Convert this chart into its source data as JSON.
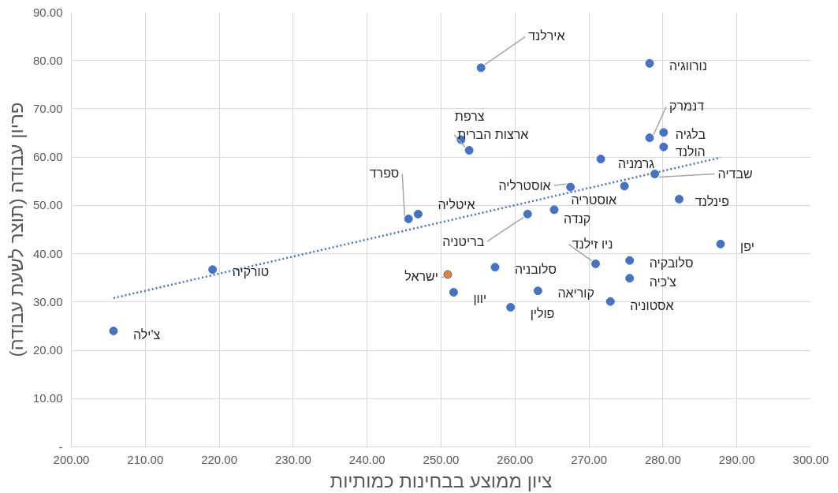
{
  "chart_data": {
    "type": "scatter",
    "xlabel": "ציון ממוצע בבחינות כמותיות",
    "ylabel": "פריון עבודה (תוצר לשעת עבודה)",
    "marker": "circle",
    "grid": true,
    "xlim": [
      200,
      300
    ],
    "ylim": [
      0,
      90
    ],
    "xticks": [
      {
        "value": 200,
        "label": "200.00"
      },
      {
        "value": 210,
        "label": "210.00"
      },
      {
        "value": 220,
        "label": "220.00"
      },
      {
        "value": 230,
        "label": "230.00"
      },
      {
        "value": 240,
        "label": "240.00"
      },
      {
        "value": 250,
        "label": "250.00"
      },
      {
        "value": 260,
        "label": "260.00"
      },
      {
        "value": 270,
        "label": "270.00"
      },
      {
        "value": 280,
        "label": "280.00"
      },
      {
        "value": 290,
        "label": "290.00"
      },
      {
        "value": 300,
        "label": "300.00"
      }
    ],
    "yticks": [
      {
        "value": 0,
        "label": "-"
      },
      {
        "value": 10,
        "label": "10.00"
      },
      {
        "value": 20,
        "label": "20.00"
      },
      {
        "value": 30,
        "label": "30.00"
      },
      {
        "value": 40,
        "label": "40.00"
      },
      {
        "value": 50,
        "label": "50.00"
      },
      {
        "value": 60,
        "label": "60.00"
      },
      {
        "value": 70,
        "label": "70.00"
      },
      {
        "value": 80,
        "label": "80.00"
      },
      {
        "value": 90,
        "label": "90.00"
      }
    ],
    "series": [
      {
        "x": [
          205.7,
          219.1,
          250.9,
          251.7,
          257.3,
          259.4,
          263.1,
          245.6,
          246.9,
          261.7,
          265.3,
          267.5,
          271.6,
          255.4,
          253.8,
          252.7,
          278.2,
          278.2,
          280.1,
          280.1,
          278.9,
          282.2,
          287.8,
          270.9,
          275.5,
          275.5,
          272.9,
          274.8
        ],
        "values": [
          24.0,
          36.7,
          35.7,
          32.0,
          37.2,
          28.9,
          32.3,
          47.2,
          48.2,
          48.2,
          49.1,
          53.8,
          59.6,
          78.5,
          61.4,
          63.6,
          79.4,
          64.0,
          65.1,
          62.1,
          56.5,
          51.3,
          42.0,
          37.9,
          38.6,
          34.9,
          30.1,
          54.0
        ],
        "colors": [
          "#4472c4",
          "#4472c4",
          "#ed7d31",
          "#4472c4",
          "#4472c4",
          "#4472c4",
          "#4472c4",
          "#4472c4",
          "#4472c4",
          "#4472c4",
          "#4472c4",
          "#4472c4",
          "#4472c4",
          "#4472c4",
          "#4472c4",
          "#4472c4",
          "#4472c4",
          "#4472c4",
          "#4472c4",
          "#4472c4",
          "#4472c4",
          "#4472c4",
          "#4472c4",
          "#4472c4",
          "#4472c4",
          "#4472c4",
          "#4472c4",
          "#4472c4"
        ]
      },
      {
        "type": "line",
        "x": [
          205.7,
          287.8
        ],
        "values": [
          30.8,
          59.9
        ],
        "color": "#4472c4",
        "line_style": "dotted",
        "marker": "none"
      }
    ],
    "annotations": [
      {
        "text": "צ'ילה",
        "x": 205.7,
        "y": 24.0
      },
      {
        "text": "טורקיה",
        "x": 219.1,
        "y": 36.7
      },
      {
        "text": "ישראל",
        "x": 250.9,
        "y": 35.7
      },
      {
        "text": "יוון",
        "x": 251.7,
        "y": 32.0
      },
      {
        "text": "סלובניה",
        "x": 257.3,
        "y": 37.2
      },
      {
        "text": "פולין",
        "x": 259.4,
        "y": 28.9
      },
      {
        "text": "קוריאה",
        "x": 263.1,
        "y": 32.3
      },
      {
        "text": "ספרד",
        "x": 245.6,
        "y": 47.2
      },
      {
        "text": "איטליה",
        "x": 246.9,
        "y": 48.2
      },
      {
        "text": "בריטניה",
        "x": 261.7,
        "y": 48.2
      },
      {
        "text": "קנדה",
        "x": 265.3,
        "y": 49.1
      },
      {
        "text": "אוסטרליה",
        "x": 267.5,
        "y": 53.8
      },
      {
        "text": "גרמניה",
        "x": 271.6,
        "y": 59.6
      },
      {
        "text": "אירלנד",
        "x": 255.4,
        "y": 78.5
      },
      {
        "text": "ארצות הברית",
        "x": 253.8,
        "y": 61.4
      },
      {
        "text": "צרפת",
        "x": 252.7,
        "y": 63.6
      },
      {
        "text": "נורווגיה",
        "x": 278.2,
        "y": 79.4
      },
      {
        "text": "דנמרק",
        "x": 278.2,
        "y": 64.0
      },
      {
        "text": "בלגיה",
        "x": 280.1,
        "y": 65.1
      },
      {
        "text": "הולנד",
        "x": 280.1,
        "y": 62.1
      },
      {
        "text": "שבדיה",
        "x": 278.9,
        "y": 56.5
      },
      {
        "text": "פינלנד",
        "x": 282.2,
        "y": 51.3
      },
      {
        "text": "יפן",
        "x": 287.8,
        "y": 42.0
      },
      {
        "text": "ניו זילנד",
        "x": 270.9,
        "y": 37.9
      },
      {
        "text": "סלובקיה",
        "x": 275.5,
        "y": 38.6
      },
      {
        "text": "צ'כיה",
        "x": 275.5,
        "y": 34.9
      },
      {
        "text": "אסטוניה",
        "x": 272.9,
        "y": 30.1
      },
      {
        "text": "אוסטריה",
        "x": 274.8,
        "y": 54.0
      }
    ]
  }
}
